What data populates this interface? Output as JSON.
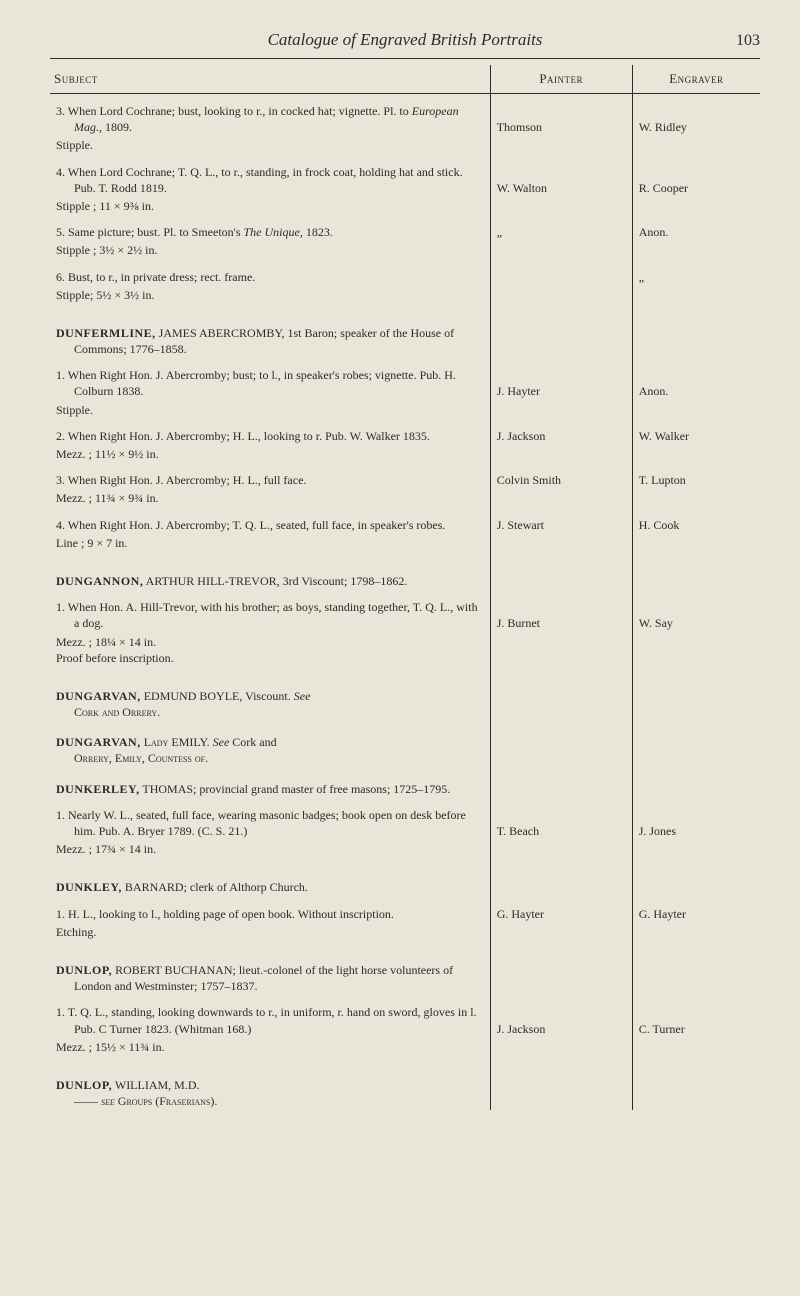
{
  "page": {
    "title": "Catalogue of Engraved British Portraits",
    "number": "103"
  },
  "columns": {
    "subject": "Subject",
    "painter": "Painter",
    "engraver": "Engraver"
  },
  "entries": [
    {
      "type": "continuation",
      "items": [
        {
          "num": "3.",
          "text": "When Lord Cochrane; bust, looking to r., in cocked hat; vignette.  Pl. to ",
          "it": "European Mag.",
          "tail": ", 1809.",
          "spec": "Stipple.",
          "painter": "Thomson",
          "engraver": "W. Ridley"
        },
        {
          "num": "4.",
          "text": "When Lord Cochrane; T. Q. L., to r., standing, in frock coat, holding hat and stick.  Pub. T. Rodd 1819.",
          "spec": "Stipple ; 11 × 9⅜ in.",
          "painter": "W. Walton",
          "engraver": "R. Cooper"
        },
        {
          "num": "5.",
          "text": "Same picture; bust.  Pl. to Smeeton's ",
          "it": "The Unique",
          "tail": ", 1823.",
          "spec": "Stipple ; 3½ × 2½ in.",
          "painter": "„",
          "engraver": "Anon."
        },
        {
          "num": "6.",
          "text": "Bust, to r., in private dress; rect. frame.",
          "spec": "Stipple; 5½ × 3½ in.",
          "painter": "",
          "engraver": "„"
        }
      ]
    },
    {
      "type": "heading",
      "name": "DUNFERMLINE,",
      "rest": "JAMES ABERCROMBY, 1st Baron; speaker of the House of Commons; 1776–1858.",
      "items": [
        {
          "num": "1.",
          "text": "When Right Hon. J. Abercromby; bust; to l., in speaker's robes; vignette.  Pub. H. Colburn 1838.",
          "spec": "Stipple.",
          "painter": "J. Hayter",
          "engraver": "Anon."
        },
        {
          "num": "2.",
          "text": "When Right Hon. J. Abercromby; H. L., looking to r. Pub. W. Walker 1835.",
          "spec": "Mezz. ; 11½ × 9½ in.",
          "painter": "J. Jackson",
          "engraver": "W. Walker"
        },
        {
          "num": "3.",
          "text": "When Right Hon. J. Abercromby; H. L., full face.",
          "spec": "Mezz. ; 11¾ × 9¾ in.",
          "painter": "Colvin Smith",
          "engraver": "T. Lupton"
        },
        {
          "num": "4.",
          "text": "When Right Hon. J. Abercromby; T. Q. L., seated, full face, in speaker's robes.",
          "spec": "Line ; 9 × 7 in.",
          "painter": "J. Stewart",
          "engraver": "H. Cook"
        }
      ]
    },
    {
      "type": "heading",
      "name": "DUNGANNON,",
      "rest": "ARTHUR HILL-TREVOR, 3rd Viscount; 1798–1862.",
      "items": [
        {
          "num": "1.",
          "text": "When Hon. A. Hill-Trevor, with his brother; as boys, standing together, T. Q. L., with a dog.",
          "spec": "Mezz. ; 18¼ × 14 in.\nProof before inscription.",
          "painter": "J. Burnet",
          "engraver": "W. Say"
        }
      ]
    },
    {
      "type": "crossref",
      "name": "DUNGARVAN,",
      "rest": "EDMUND BOYLE, Viscount.    See",
      "line2": "Cork and Orrery."
    },
    {
      "type": "crossref",
      "name": "DUNGARVAN,",
      "rest": "Lady EMILY.  See Cork and",
      "line2": "Orrery, Emily, Countess of."
    },
    {
      "type": "heading",
      "name": "DUNKERLEY,",
      "rest": "THOMAS; provincial grand master of free masons; 1725–1795.",
      "items": [
        {
          "num": "1.",
          "text": "Nearly W. L., seated, full face, wearing masonic badges; book open on desk before him.  Pub. A. Bryer 1789. (C. S. 21.)",
          "spec": "Mezz. ; 17¾ × 14 in.",
          "painter": "T. Beach",
          "engraver": "J. Jones"
        }
      ]
    },
    {
      "type": "heading",
      "name": "DUNKLEY,",
      "rest": "BARNARD; clerk of Althorp Church.",
      "items": [
        {
          "num": "1.",
          "text": "H. L., looking to l., holding page of open book.  Without inscription.",
          "spec": "Etching.",
          "painter": "G. Hayter",
          "engraver": "G. Hayter"
        }
      ]
    },
    {
      "type": "heading",
      "name": "DUNLOP,",
      "rest": "ROBERT BUCHANAN; lieut.-colonel of the light horse volunteers of London and Westminster; 1757–1837.",
      "items": [
        {
          "num": "1.",
          "text": "T. Q. L., standing, looking downwards to r., in uniform, r. hand on sword, gloves in l.  Pub. C Turner 1823. (Whitman 168.)",
          "spec": "Mezz. ; 15½ × 11¾ in.",
          "painter": "J. Jackson",
          "engraver": "C. Turner"
        }
      ]
    },
    {
      "type": "crossref",
      "name": "DUNLOP,",
      "rest": "WILLIAM, M.D.",
      "line2": "—— see Groups (Fraserians)."
    }
  ]
}
